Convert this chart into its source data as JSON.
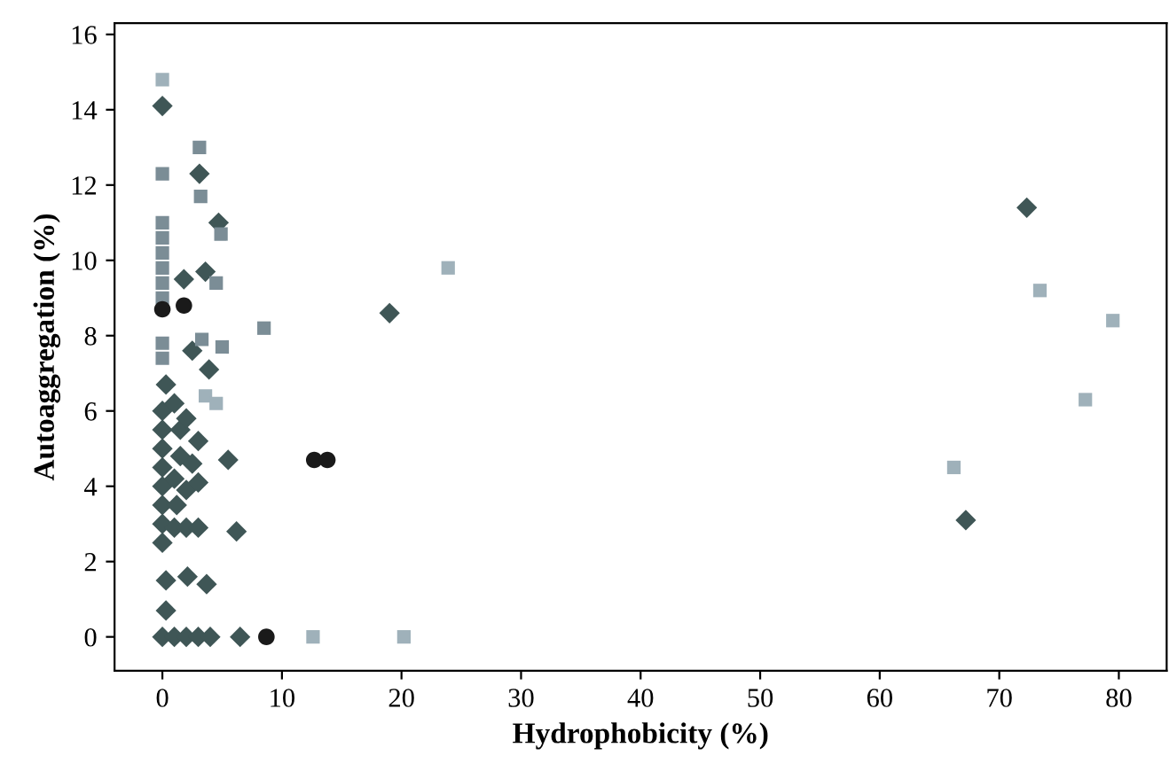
{
  "chart_data": {
    "type": "scatter",
    "xlabel": "Hydrophobicity (%)",
    "ylabel": "Autoaggregation (%)",
    "xlim": [
      -4,
      84
    ],
    "ylim": [
      -0.9,
      16.3
    ],
    "xticks": [
      0,
      10,
      20,
      30,
      40,
      50,
      60,
      70,
      80
    ],
    "yticks": [
      0,
      2,
      4,
      6,
      8,
      10,
      12,
      14,
      16
    ],
    "grid": false,
    "legend": false,
    "series": [
      {
        "marker": "diamond",
        "color": "#3f5656",
        "x": [
          0,
          3.1,
          3.6,
          1.8,
          4.7,
          19.0,
          72.3,
          67.2,
          0.3,
          3.9,
          5.5,
          6.2,
          2.1,
          3.7,
          0.3,
          0.3,
          0,
          0,
          0,
          0,
          0,
          0,
          0,
          0,
          1,
          1.5,
          2,
          1.5,
          2.5,
          3,
          1,
          2,
          3,
          1,
          2,
          3,
          2.5,
          1.2,
          0,
          1,
          2,
          3,
          4,
          6.5
        ],
        "values": [
          14.1,
          12.3,
          9.7,
          9.5,
          11.0,
          8.6,
          11.4,
          3.1,
          6.7,
          7.1,
          4.7,
          2.8,
          1.6,
          1.4,
          1.5,
          0.7,
          6.0,
          5.5,
          5.0,
          4.5,
          4.0,
          3.5,
          3.0,
          2.5,
          6.2,
          5.5,
          5.8,
          4.8,
          4.6,
          5.2,
          4.2,
          3.9,
          4.1,
          2.9,
          2.9,
          2.9,
          7.6,
          3.5,
          0,
          0,
          0,
          0,
          0,
          0
        ]
      },
      {
        "marker": "square",
        "color": "#7b8d96",
        "x": [
          0,
          0,
          0,
          0,
          0,
          0,
          0,
          3.1,
          3.2,
          4.9,
          4.5,
          3.3,
          5.0,
          8.5,
          0,
          0
        ],
        "values": [
          12.3,
          11.0,
          10.6,
          10.2,
          9.8,
          9.4,
          9.0,
          13.0,
          11.7,
          10.7,
          9.4,
          7.9,
          7.7,
          8.2,
          7.8,
          7.4
        ]
      },
      {
        "marker": "square",
        "color": "#9fb1ba",
        "x": [
          0,
          23.9,
          73.4,
          79.5,
          77.2,
          66.2,
          12.6,
          20.2,
          3.6,
          4.5
        ],
        "values": [
          14.8,
          9.8,
          9.2,
          8.4,
          6.3,
          4.5,
          0,
          0,
          6.4,
          6.2
        ]
      },
      {
        "marker": "circle",
        "color": "#1a1a1a",
        "x": [
          0,
          1.8,
          8.7,
          12.7,
          13.8
        ],
        "values": [
          8.7,
          8.8,
          0,
          4.7,
          4.7
        ]
      }
    ]
  }
}
